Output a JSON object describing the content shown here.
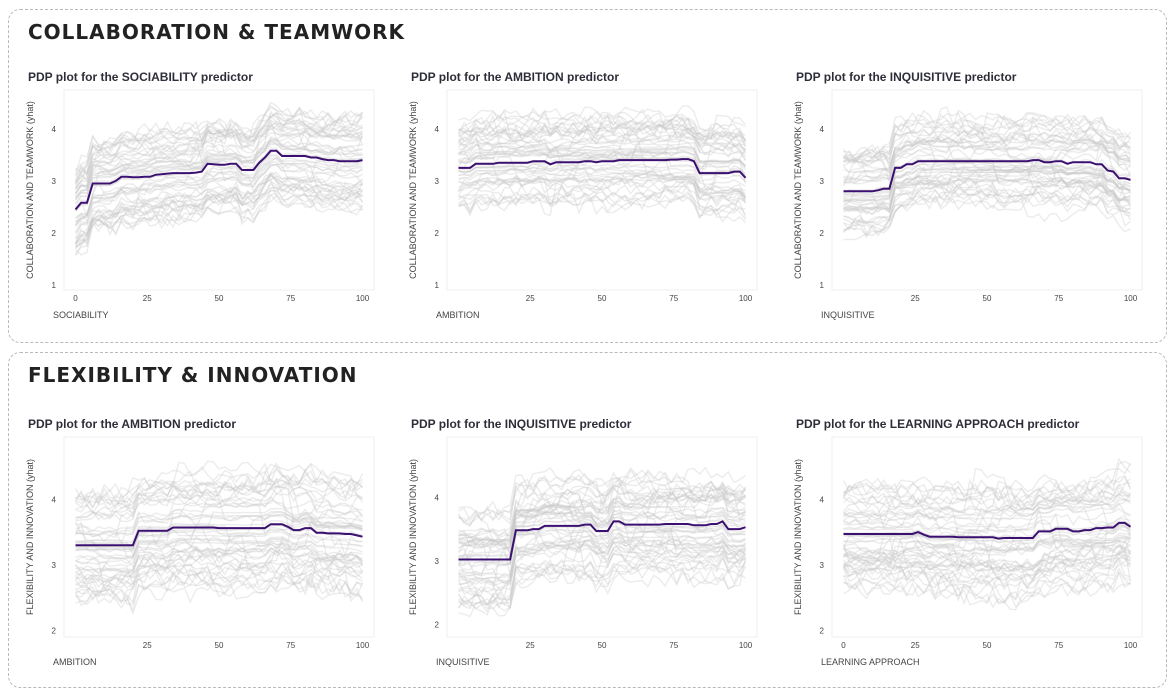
{
  "sections": [
    {
      "title": "COLLABORATION & TEAMWORK",
      "panels": [
        {
          "title": "PDP plot for the SOCIABILITY predictor",
          "chart_data": {
            "type": "line",
            "xlabel": "SOCIABILITY",
            "ylabel": "COLLABORATION AND TEAMWORK (yhat)",
            "xlim": [
              -4,
              104
            ],
            "ylim": [
              0.9,
              4.75
            ],
            "xticks": [
              0,
              25,
              50,
              75,
              100
            ],
            "yticks": [
              1,
              2,
              3,
              4
            ],
            "series": [
              {
                "values_x": [
                  0,
                  2,
                  4,
                  6,
                  8,
                  10,
                  12,
                  14,
                  16,
                  18,
                  20,
                  22,
                  24,
                  26,
                  28,
                  30,
                  32,
                  34,
                  36,
                  38,
                  40,
                  42,
                  44,
                  46,
                  48,
                  50,
                  52,
                  54,
                  56,
                  58,
                  60,
                  62,
                  64,
                  66,
                  68,
                  70,
                  72,
                  74,
                  76,
                  78,
                  80,
                  82,
                  84,
                  86,
                  88,
                  90,
                  92,
                  94,
                  96,
                  98,
                  100
                ],
                "values_y": [
                  2.45,
                  2.58,
                  2.58,
                  2.95,
                  2.95,
                  2.95,
                  2.95,
                  3.0,
                  3.08,
                  3.08,
                  3.07,
                  3.07,
                  3.08,
                  3.08,
                  3.12,
                  3.13,
                  3.14,
                  3.15,
                  3.15,
                  3.15,
                  3.15,
                  3.16,
                  3.18,
                  3.33,
                  3.32,
                  3.31,
                  3.31,
                  3.33,
                  3.33,
                  3.21,
                  3.21,
                  3.21,
                  3.35,
                  3.45,
                  3.58,
                  3.58,
                  3.48,
                  3.48,
                  3.48,
                  3.48,
                  3.48,
                  3.45,
                  3.45,
                  3.42,
                  3.4,
                  3.4,
                  3.38,
                  3.38,
                  3.38,
                  3.38,
                  3.4
                ],
                "color": "#3b1070"
              }
            ]
          }
        },
        {
          "title": "PDP plot for the AMBITION predictor",
          "chart_data": {
            "type": "line",
            "xlabel": "AMBITION",
            "ylabel": "COLLABORATION AND TEAMWORK (yhat)",
            "xlim": [
              -4,
              104
            ],
            "ylim": [
              0.9,
              4.75
            ],
            "xticks": [
              25,
              50,
              75,
              100
            ],
            "yticks": [
              1,
              2,
              3,
              4
            ],
            "series": [
              {
                "values_x": [
                  0,
                  2,
                  4,
                  6,
                  8,
                  10,
                  12,
                  14,
                  16,
                  18,
                  20,
                  22,
                  24,
                  26,
                  28,
                  30,
                  32,
                  34,
                  36,
                  38,
                  40,
                  42,
                  44,
                  46,
                  48,
                  50,
                  52,
                  54,
                  56,
                  58,
                  60,
                  62,
                  64,
                  66,
                  68,
                  70,
                  72,
                  74,
                  76,
                  78,
                  80,
                  82,
                  84,
                  86,
                  88,
                  90,
                  92,
                  94,
                  96,
                  98,
                  100
                ],
                "values_y": [
                  3.25,
                  3.25,
                  3.25,
                  3.33,
                  3.33,
                  3.33,
                  3.33,
                  3.35,
                  3.35,
                  3.35,
                  3.35,
                  3.35,
                  3.35,
                  3.38,
                  3.38,
                  3.38,
                  3.32,
                  3.36,
                  3.36,
                  3.36,
                  3.36,
                  3.36,
                  3.38,
                  3.38,
                  3.36,
                  3.38,
                  3.38,
                  3.38,
                  3.4,
                  3.4,
                  3.4,
                  3.4,
                  3.4,
                  3.4,
                  3.4,
                  3.4,
                  3.4,
                  3.41,
                  3.41,
                  3.42,
                  3.42,
                  3.38,
                  3.15,
                  3.15,
                  3.15,
                  3.15,
                  3.15,
                  3.15,
                  3.18,
                  3.18,
                  3.06
                ],
                "color": "#3b1070"
              }
            ]
          }
        },
        {
          "title": "PDP plot for the INQUISITIVE predictor",
          "chart_data": {
            "type": "line",
            "xlabel": "INQUISITIVE",
            "ylabel": "COLLABORATION AND TEAMWORK (yhat)",
            "xlim": [
              -4,
              104
            ],
            "ylim": [
              0.9,
              4.75
            ],
            "xticks": [
              25,
              50,
              75,
              100
            ],
            "yticks": [
              1,
              2,
              3,
              4
            ],
            "series": [
              {
                "values_x": [
                  0,
                  2,
                  4,
                  6,
                  8,
                  10,
                  12,
                  14,
                  16,
                  18,
                  20,
                  22,
                  24,
                  26,
                  28,
                  30,
                  32,
                  34,
                  36,
                  38,
                  40,
                  42,
                  44,
                  46,
                  48,
                  50,
                  52,
                  54,
                  56,
                  58,
                  60,
                  62,
                  64,
                  66,
                  68,
                  70,
                  72,
                  74,
                  76,
                  78,
                  80,
                  82,
                  84,
                  86,
                  88,
                  90,
                  92,
                  94,
                  96,
                  98,
                  100
                ],
                "values_y": [
                  2.8,
                  2.8,
                  2.8,
                  2.8,
                  2.8,
                  2.8,
                  2.82,
                  2.85,
                  2.85,
                  3.25,
                  3.25,
                  3.32,
                  3.32,
                  3.38,
                  3.38,
                  3.38,
                  3.38,
                  3.38,
                  3.38,
                  3.38,
                  3.38,
                  3.38,
                  3.38,
                  3.38,
                  3.38,
                  3.38,
                  3.38,
                  3.38,
                  3.38,
                  3.38,
                  3.38,
                  3.38,
                  3.38,
                  3.4,
                  3.4,
                  3.36,
                  3.36,
                  3.38,
                  3.38,
                  3.33,
                  3.36,
                  3.36,
                  3.36,
                  3.36,
                  3.32,
                  3.32,
                  3.2,
                  3.18,
                  3.05,
                  3.05,
                  3.02
                ],
                "color": "#3b1070"
              }
            ]
          }
        }
      ]
    },
    {
      "title": "FLEXIBILITY & INNOVATION",
      "panels": [
        {
          "title": "PDP plot for the AMBITION predictor",
          "chart_data": {
            "type": "line",
            "xlabel": "AMBITION",
            "ylabel": "FLEXIBILITY AND INNOVATION (yhat)",
            "xlim": [
              -4,
              104
            ],
            "ylim": [
              1.9,
              4.95
            ],
            "xticks": [
              25,
              50,
              75,
              100
            ],
            "yticks": [
              2,
              3,
              4
            ],
            "series": [
              {
                "values_x": [
                  0,
                  2,
                  4,
                  6,
                  8,
                  10,
                  12,
                  14,
                  16,
                  18,
                  20,
                  22,
                  24,
                  26,
                  28,
                  30,
                  32,
                  34,
                  36,
                  38,
                  40,
                  42,
                  44,
                  46,
                  48,
                  50,
                  52,
                  54,
                  56,
                  58,
                  60,
                  62,
                  64,
                  66,
                  68,
                  70,
                  72,
                  74,
                  76,
                  78,
                  80,
                  82,
                  84,
                  86,
                  88,
                  90,
                  92,
                  94,
                  96,
                  98,
                  100
                ],
                "values_y": [
                  3.3,
                  3.3,
                  3.3,
                  3.3,
                  3.3,
                  3.3,
                  3.3,
                  3.3,
                  3.3,
                  3.3,
                  3.3,
                  3.52,
                  3.52,
                  3.52,
                  3.52,
                  3.52,
                  3.52,
                  3.57,
                  3.57,
                  3.57,
                  3.57,
                  3.57,
                  3.57,
                  3.57,
                  3.57,
                  3.56,
                  3.56,
                  3.56,
                  3.56,
                  3.56,
                  3.56,
                  3.56,
                  3.56,
                  3.56,
                  3.62,
                  3.62,
                  3.62,
                  3.58,
                  3.53,
                  3.53,
                  3.56,
                  3.56,
                  3.49,
                  3.49,
                  3.48,
                  3.48,
                  3.48,
                  3.47,
                  3.47,
                  3.45,
                  3.43
                ],
                "color": "#3b1070"
              }
            ]
          }
        },
        {
          "title": "PDP plot for the INQUISITIVE predictor",
          "chart_data": {
            "type": "line",
            "xlabel": "INQUISITIVE",
            "ylabel": "FLEXIBILITY AND INNOVATION (yhat)",
            "xlim": [
              -4,
              104
            ],
            "ylim": [
              1.8,
              4.95
            ],
            "xticks": [
              25,
              50,
              75,
              100
            ],
            "yticks": [
              2,
              3,
              4
            ],
            "series": [
              {
                "values_x": [
                  0,
                  2,
                  4,
                  6,
                  8,
                  10,
                  12,
                  14,
                  16,
                  18,
                  20,
                  22,
                  24,
                  26,
                  28,
                  30,
                  32,
                  34,
                  36,
                  38,
                  40,
                  42,
                  44,
                  46,
                  48,
                  50,
                  52,
                  54,
                  56,
                  58,
                  60,
                  62,
                  64,
                  66,
                  68,
                  70,
                  72,
                  74,
                  76,
                  78,
                  80,
                  82,
                  84,
                  86,
                  88,
                  90,
                  92,
                  94,
                  96,
                  98,
                  100
                ],
                "values_y": [
                  3.02,
                  3.02,
                  3.02,
                  3.02,
                  3.02,
                  3.02,
                  3.02,
                  3.02,
                  3.02,
                  3.02,
                  3.48,
                  3.48,
                  3.48,
                  3.5,
                  3.5,
                  3.55,
                  3.55,
                  3.55,
                  3.55,
                  3.55,
                  3.55,
                  3.55,
                  3.57,
                  3.57,
                  3.47,
                  3.47,
                  3.47,
                  3.62,
                  3.62,
                  3.57,
                  3.57,
                  3.57,
                  3.57,
                  3.57,
                  3.57,
                  3.57,
                  3.58,
                  3.58,
                  3.58,
                  3.58,
                  3.58,
                  3.56,
                  3.56,
                  3.56,
                  3.58,
                  3.58,
                  3.62,
                  3.5,
                  3.5,
                  3.5,
                  3.53
                ],
                "color": "#3b1070"
              }
            ]
          }
        },
        {
          "title": "PDP plot for the LEARNING APPROACH predictor",
          "chart_data": {
            "type": "line",
            "xlabel": "LEARNING APPROACH",
            "ylabel": "FLEXIBILITY AND INNOVATION (yhat)",
            "xlim": [
              -4,
              104
            ],
            "ylim": [
              1.9,
              4.95
            ],
            "xticks": [
              0,
              25,
              50,
              75,
              100
            ],
            "yticks": [
              2,
              3,
              4
            ],
            "series": [
              {
                "values_x": [
                  0,
                  2,
                  4,
                  6,
                  8,
                  10,
                  12,
                  14,
                  16,
                  18,
                  20,
                  22,
                  24,
                  26,
                  28,
                  30,
                  32,
                  34,
                  36,
                  38,
                  40,
                  42,
                  44,
                  46,
                  48,
                  50,
                  52,
                  54,
                  56,
                  58,
                  60,
                  62,
                  64,
                  66,
                  68,
                  70,
                  72,
                  74,
                  76,
                  78,
                  80,
                  82,
                  84,
                  86,
                  88,
                  90,
                  92,
                  94,
                  96,
                  98,
                  100
                ],
                "values_y": [
                  3.47,
                  3.47,
                  3.47,
                  3.47,
                  3.47,
                  3.47,
                  3.47,
                  3.47,
                  3.47,
                  3.47,
                  3.47,
                  3.47,
                  3.47,
                  3.5,
                  3.46,
                  3.43,
                  3.43,
                  3.43,
                  3.43,
                  3.43,
                  3.42,
                  3.42,
                  3.42,
                  3.42,
                  3.42,
                  3.42,
                  3.42,
                  3.4,
                  3.41,
                  3.41,
                  3.41,
                  3.41,
                  3.41,
                  3.41,
                  3.51,
                  3.51,
                  3.51,
                  3.55,
                  3.55,
                  3.55,
                  3.51,
                  3.51,
                  3.53,
                  3.53,
                  3.56,
                  3.56,
                  3.57,
                  3.57,
                  3.64,
                  3.64,
                  3.58
                ],
                "color": "#3b1070"
              }
            ]
          }
        }
      ]
    }
  ]
}
